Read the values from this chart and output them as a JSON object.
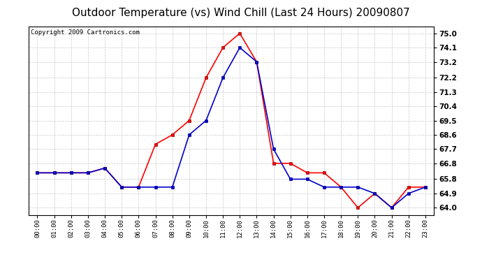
{
  "title": "Outdoor Temperature (vs) Wind Chill (Last 24 Hours) 20090807",
  "copyright": "Copyright 2009 Cartronics.com",
  "x_labels": [
    "00:00",
    "01:00",
    "02:00",
    "03:00",
    "04:00",
    "05:00",
    "06:00",
    "07:00",
    "08:00",
    "09:00",
    "10:00",
    "11:00",
    "12:00",
    "13:00",
    "14:00",
    "15:00",
    "16:00",
    "17:00",
    "18:00",
    "19:00",
    "20:00",
    "21:00",
    "22:00",
    "23:00"
  ],
  "temp": [
    66.2,
    66.2,
    66.2,
    66.2,
    66.5,
    65.3,
    65.3,
    68.0,
    68.6,
    69.5,
    72.2,
    74.1,
    75.0,
    73.2,
    66.8,
    66.8,
    66.2,
    66.2,
    65.3,
    64.0,
    64.9,
    64.0,
    65.3,
    65.3
  ],
  "windchill": [
    66.2,
    66.2,
    66.2,
    66.2,
    66.5,
    65.3,
    65.3,
    65.3,
    65.3,
    68.6,
    69.5,
    72.2,
    74.1,
    73.2,
    67.7,
    65.8,
    65.8,
    65.3,
    65.3,
    65.3,
    64.9,
    64.0,
    64.9,
    65.3
  ],
  "temp_color": "#ff0000",
  "windchill_color": "#0000cc",
  "bg_color": "#ffffff",
  "grid_color": "#bbbbbb",
  "ylim_min": 63.55,
  "ylim_max": 75.45,
  "yticks": [
    64.0,
    64.9,
    65.8,
    66.8,
    67.7,
    68.6,
    69.5,
    70.4,
    71.3,
    72.2,
    73.2,
    74.1,
    75.0
  ],
  "title_fontsize": 11,
  "copyright_fontsize": 6.5,
  "marker_size": 3.0,
  "line_width": 1.2
}
